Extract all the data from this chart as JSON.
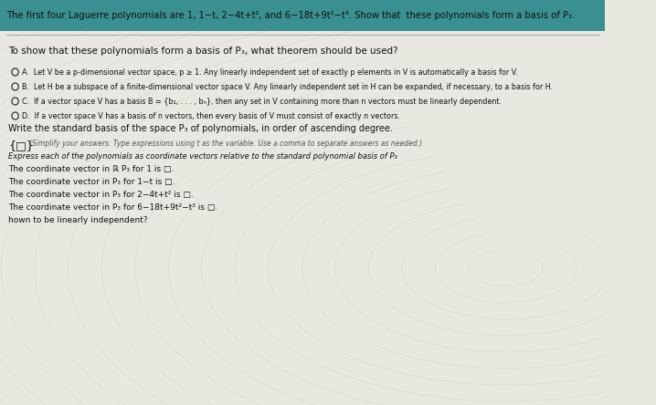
{
  "bg_top_color": "#2d8b8b",
  "bg_main_color": "#e8e8e0",
  "bg_pattern_color": "#d0d0c8",
  "title_text": "The first four Laguerre polynomials are 1, 1−t, 2−4t+t², and 6−18t+9t²−t³. Show that  these polynomials form a basis of P₃.",
  "question_text": "To show that these polynomials form a basis of P₃, what theorem should be used?",
  "option_A": "A.  Let V be a p-dimensional vector space, p ≥ 1. Any linearly independent set of exactly p elements in V is automatically a basis for V.",
  "option_B": "B.  Let H be a subspace of a finite-dimensional vector space V. Any linearly independent set in H can be expanded, if necessary, to a basis for H.",
  "option_C": "C.  If a vector space V has a basis B = {b₁, . . . , bₙ}, then any set in V containing more than n vectors must be linearly dependent.",
  "option_D": "D.  If a vector space V has a basis of n vectors, then every basis of V must consist of exactly n vectors.",
  "write_basis_text": "Write the standard basis of the space P₃ of polynomials, in order of ascending degree.",
  "braces_symbol": "{□}",
  "simplify_text": "(Simplify your answers. Type expressions using t as the variable. Use a comma to separate answers as needed.)",
  "express_text": "Express each of the polynomials as coordinate vectors relative to the standard polynomial basis of P₃",
  "coord1": "The coordinate vector in ℝ P₃ for 1 is □.",
  "coord2": "The coordinate vector in P₃ for 1−t is □.",
  "coord3": "The coordinate vector in P₃ for 2−4t+t² is □.",
  "coord4": "The coordinate vector in P₃ for 6−18t+9t²−t³ is □.",
  "bottom_text": "hown to be linearly independent?",
  "teal_color": "#3a9090",
  "white_color": "#f0f0ea",
  "text_color": "#111111",
  "gray_color": "#888880"
}
